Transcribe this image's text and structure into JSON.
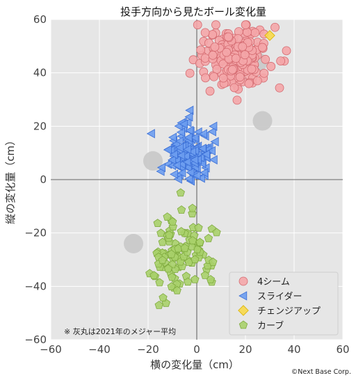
{
  "chart_data": {
    "type": "scatter",
    "title": "投手方向から見たボール変化量",
    "xlabel": "横の変化量（cm）",
    "ylabel": "縦の変化量（cm）",
    "xlim": [
      -60,
      60
    ],
    "ylim": [
      -60,
      60
    ],
    "xticks": [
      -60,
      -40,
      -20,
      0,
      20,
      40,
      60
    ],
    "yticks": [
      -60,
      -40,
      -20,
      0,
      20,
      40,
      60
    ],
    "grid": true,
    "legend_position": "bottom-right",
    "note": "※ 灰丸は2021年のメジャー平均",
    "credit": "©Next Base Corp.",
    "league_average": {
      "color": "#c8c8c8",
      "points": [
        [
          27,
          22
        ],
        [
          -18,
          7
        ],
        [
          -26,
          -24
        ],
        [
          25,
          44
        ]
      ]
    },
    "series": [
      {
        "name": "4シーム",
        "marker": "circle",
        "color": "#f4a6a8",
        "edge": "#d46a70",
        "center": [
          17,
          46
        ],
        "spread": [
          7,
          6
        ],
        "count": 190
      },
      {
        "name": "スライダー",
        "marker": "triangle-left",
        "color": "#6d9df0",
        "edge": "#3b6fd6",
        "center": [
          -4,
          9
        ],
        "spread": [
          5,
          5
        ],
        "count": 150
      },
      {
        "name": "チェンジアップ",
        "marker": "diamond",
        "color": "#f7d84a",
        "edge": "#d9b100",
        "points": [
          [
            30,
            54
          ]
        ]
      },
      {
        "name": "カーブ",
        "marker": "pentagon",
        "color": "#a9d06a",
        "edge": "#7faa3e",
        "center": [
          -6,
          -27
        ],
        "spread": [
          6,
          8
        ],
        "count": 110
      }
    ]
  }
}
